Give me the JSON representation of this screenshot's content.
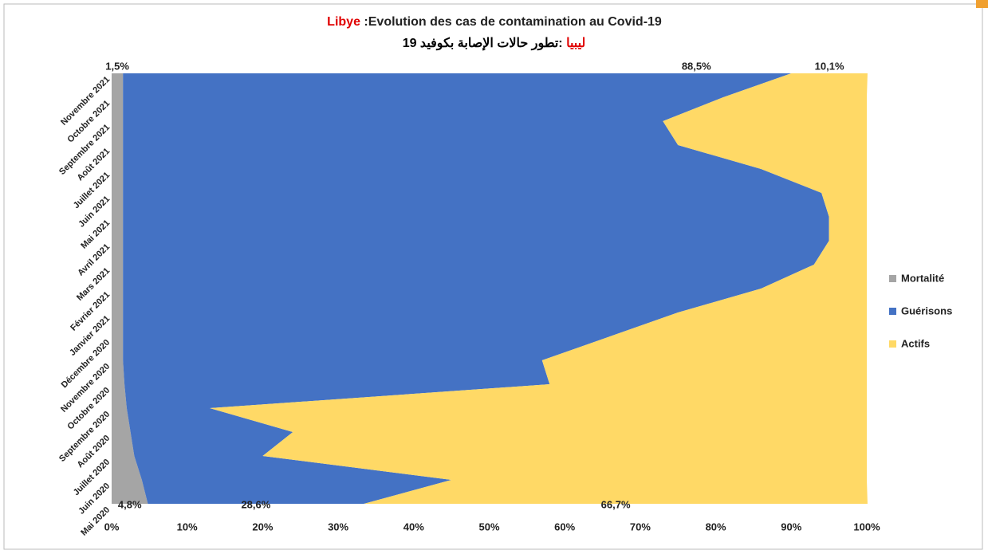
{
  "chart_data": {
    "type": "stacked_area_horizontal",
    "title": [
      "Libye",
      " :Evolution des cas de contamination  au Covid-19"
    ],
    "subtitle": [
      "ليبيا",
      " :تطور حالات الإصابة بكوفيد 19"
    ],
    "categories": [
      "Mai 2020",
      "Juin 2020",
      "Juillet 2020",
      "Août 2020",
      "Septembre 2020",
      "Octobre 2020",
      "Novembre 2020",
      "Décembre 2020",
      "Janvier 2021",
      "Février 2021",
      "Mars 2021",
      "Avril 2021",
      "Mai 2021",
      "Juin 2021",
      "Juillet 2021",
      "Août 2021",
      "Septembre 2021",
      "Octobre 2021",
      "Novembre 2021"
    ],
    "series": [
      {
        "name": "Mortalité",
        "color": "#a5a5a5",
        "values": [
          4.8,
          4,
          3,
          2.5,
          2,
          1.7,
          1.5,
          1.5,
          1.5,
          1.5,
          1.5,
          1.5,
          1.5,
          1.5,
          1.5,
          1.5,
          1.5,
          1.5,
          1.5
        ],
        "value_labels": [
          "4,8%",
          null,
          null,
          null,
          null,
          null,
          null,
          null,
          null,
          null,
          null,
          null,
          null,
          null,
          null,
          null,
          null,
          null,
          "1,5%"
        ]
      },
      {
        "name": "Guérisons",
        "color": "#4472c4",
        "values": [
          28.6,
          41,
          17,
          21.5,
          11,
          56.3,
          55.5,
          64.5,
          73.5,
          84.5,
          91.5,
          93.5,
          93.5,
          92.5,
          84.5,
          73.5,
          71.5,
          79.5,
          88.5
        ],
        "value_labels": [
          "28,6%",
          null,
          null,
          null,
          null,
          null,
          null,
          null,
          null,
          null,
          null,
          null,
          null,
          null,
          null,
          null,
          null,
          null,
          "88,5%"
        ]
      },
      {
        "name": "Actifs",
        "color": "#ffd966",
        "values": [
          66.7,
          55,
          80,
          76,
          87,
          42,
          43,
          34,
          25,
          14,
          7,
          5,
          5,
          6,
          14,
          25,
          27,
          19,
          10.1
        ],
        "value_labels": [
          "66,7%",
          null,
          null,
          null,
          null,
          null,
          null,
          null,
          null,
          null,
          null,
          null,
          null,
          null,
          null,
          null,
          null,
          null,
          "10,1%"
        ]
      }
    ],
    "xlim": [
      0,
      100
    ],
    "xticks": [
      {
        "value": 0,
        "label": "0%"
      },
      {
        "value": 10,
        "label": "10%"
      },
      {
        "value": 20,
        "label": "20%"
      },
      {
        "value": 30,
        "label": "30%"
      },
      {
        "value": 40,
        "label": "40%"
      },
      {
        "value": 50,
        "label": "50%"
      },
      {
        "value": 60,
        "label": "60%"
      },
      {
        "value": 70,
        "label": "70%"
      },
      {
        "value": 80,
        "label": "80%"
      },
      {
        "value": 90,
        "label": "90%"
      },
      {
        "value": 100,
        "label": "100%"
      }
    ],
    "legend": "right"
  }
}
